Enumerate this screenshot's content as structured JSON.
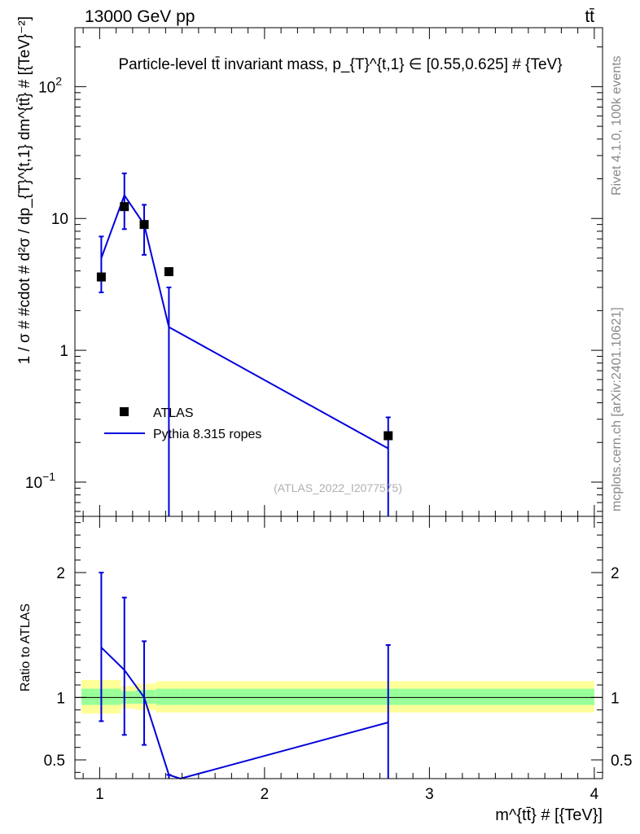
{
  "header": {
    "left_label": "13000 GeV pp",
    "right_label": "tt̄"
  },
  "side": {
    "rivet": "Rivet 4.1.0,  100k events",
    "site": "mcplots.cern.ch [arXiv:2401.10621]"
  },
  "chart_data": [
    {
      "type": "line",
      "title": "Particle-level tt̄ invariant mass, p_{T}^{t,1} ∈ [0.55,0.625] # {TeV}",
      "ylabel": "1 / σ # #cdot # d²σ / dp_{T}^{t,1} dm^{tt̄} # [{TeV}⁻²]",
      "xlabel": "",
      "yscale": "log",
      "xlim": [
        0.85,
        4.05
      ],
      "ylim": [
        0.055,
        280
      ],
      "yticks": [
        {
          "v": 0.1,
          "label": "10",
          "exp": "−1"
        },
        {
          "v": 1,
          "label": "1",
          "exp": ""
        },
        {
          "v": 10,
          "label": "10",
          "exp": ""
        },
        {
          "v": 100,
          "label": "10",
          "exp": "2"
        }
      ],
      "watermark": "(ATLAS_2022_I2077575)",
      "legend_position": "middle-left",
      "series": [
        {
          "name": "ATLAS",
          "kind": "points",
          "color": "#000000",
          "points": [
            {
              "x": 1.01,
              "y": 3.6,
              "ylo": 2.75,
              "yhi": 7.3
            },
            {
              "x": 1.15,
              "y": 12.3,
              "ylo": 8.3,
              "yhi": 22.0
            },
            {
              "x": 1.27,
              "y": 9.0,
              "ylo": 5.3,
              "yhi": 12.7
            },
            {
              "x": 1.42,
              "y": 3.95,
              "ylo": null,
              "yhi": null
            },
            {
              "x": 2.75,
              "y": 0.225,
              "ylo": null,
              "yhi": null
            }
          ]
        },
        {
          "name": "Pythia 8.315 ropes",
          "kind": "line",
          "color": "#0000dd",
          "points": [
            {
              "x": 1.01,
              "y": 5.0,
              "ylo": 2.75,
              "yhi": 7.3
            },
            {
              "x": 1.15,
              "y": 15.0,
              "ylo": 8.3,
              "yhi": 22.0
            },
            {
              "x": 1.27,
              "y": 9.0,
              "ylo": 5.3,
              "yhi": 12.7
            },
            {
              "x": 1.42,
              "y": 1.5,
              "ylo": 0.01,
              "yhi": 3.0
            },
            {
              "x": 2.75,
              "y": 0.18,
              "ylo": 0.01,
              "yhi": 0.31
            }
          ]
        }
      ]
    },
    {
      "type": "line",
      "title": "",
      "ylabel": "Ratio to ATLAS",
      "xlabel": "m^{tt̄} # [{TeV}]",
      "xlim": [
        0.85,
        4.05
      ],
      "ylim": [
        0.35,
        2.45
      ],
      "xticks": [
        1,
        2,
        3,
        4
      ],
      "yticks": [
        0.5,
        1,
        2
      ],
      "reference_line": 1,
      "bands": {
        "inner_color": "#99ff99",
        "outer_color": "#ffff99",
        "segments": [
          {
            "x0": 0.89,
            "x1": 1.13,
            "inner": [
              0.94,
              1.07
            ],
            "outer": [
              0.87,
              1.14
            ]
          },
          {
            "x0": 1.13,
            "x1": 1.22,
            "inner": [
              0.95,
              1.05
            ],
            "outer": [
              0.91,
              1.09
            ]
          },
          {
            "x0": 1.22,
            "x1": 1.34,
            "inner": [
              0.95,
              1.06
            ],
            "outer": [
              0.9,
              1.11
            ]
          },
          {
            "x0": 1.34,
            "x1": 1.49,
            "inner": [
              0.94,
              1.07
            ],
            "outer": [
              0.88,
              1.13
            ]
          },
          {
            "x0": 1.49,
            "x1": 4.0,
            "inner": [
              0.94,
              1.07
            ],
            "outer": [
              0.88,
              1.13
            ]
          }
        ]
      },
      "series": [
        {
          "name": "Pythia 8.315 ropes",
          "color": "#0000dd",
          "points": [
            {
              "x": 1.01,
              "y": 1.4,
              "ylo": 0.81,
              "yhi": 2.0
            },
            {
              "x": 1.15,
              "y": 1.22,
              "ylo": 0.7,
              "yhi": 1.8
            },
            {
              "x": 1.27,
              "y": 1.0,
              "ylo": 0.62,
              "yhi": 1.45
            },
            {
              "x": 1.42,
              "y": 0.38,
              "ylo": 0.2,
              "yhi": 0.38
            },
            {
              "x": 1.49,
              "y": 0.3,
              "ylo": null,
              "yhi": null
            },
            {
              "x": 2.75,
              "y": 0.8,
              "ylo": 0.2,
              "yhi": 1.42
            }
          ]
        }
      ]
    }
  ]
}
